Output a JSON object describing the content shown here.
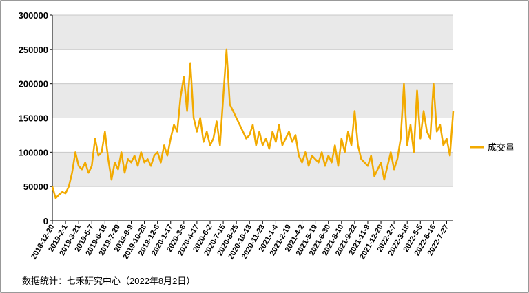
{
  "chart_data": {
    "type": "line",
    "categories": [
      "2018-12-20",
      null,
      null,
      null,
      "2019-2-1",
      null,
      null,
      null,
      "2019-3-21",
      null,
      null,
      null,
      "2019-5-7",
      null,
      null,
      null,
      "2019-6-18",
      null,
      null,
      null,
      "2019-7-29",
      null,
      null,
      null,
      "2019-9-9",
      null,
      null,
      null,
      "2019-10-28",
      null,
      null,
      null,
      "2019-12-6",
      null,
      null,
      null,
      "2020-1-17",
      null,
      null,
      null,
      "2020-3-6",
      null,
      null,
      null,
      "2020-4-17",
      null,
      null,
      null,
      "2020-6-2",
      null,
      null,
      null,
      "2020-7-15",
      null,
      null,
      null,
      "2020-8-25",
      null,
      null,
      null,
      "2020-10-13",
      null,
      null,
      null,
      "2020-11-23",
      null,
      null,
      null,
      "2021-1-4",
      null,
      null,
      null,
      "2021-2-19",
      null,
      null,
      null,
      "2021-4-2",
      null,
      null,
      null,
      "2021-5-19",
      null,
      null,
      null,
      "2021-6-30",
      null,
      null,
      null,
      "2021-8-10",
      null,
      null,
      null,
      "2021-9-22",
      null,
      null,
      null,
      "2021-11-9",
      null,
      null,
      null,
      "2021-12-20",
      null,
      null,
      null,
      "2022-2-7",
      null,
      null,
      null,
      "2022-3-18",
      null,
      null,
      null,
      "2022-5-5",
      null,
      null,
      null,
      "2022-6-16",
      null,
      null,
      null,
      "2022-7-27",
      null,
      null
    ],
    "series": [
      {
        "name": "成交量",
        "color": "#f2aa00",
        "values": [
          50000,
          33000,
          38000,
          42000,
          40000,
          50000,
          70000,
          100000,
          80000,
          75000,
          85000,
          70000,
          80000,
          120000,
          95000,
          100000,
          130000,
          90000,
          60000,
          85000,
          75000,
          100000,
          70000,
          90000,
          85000,
          95000,
          80000,
          100000,
          85000,
          90000,
          80000,
          95000,
          100000,
          85000,
          110000,
          95000,
          120000,
          140000,
          130000,
          180000,
          210000,
          160000,
          230000,
          150000,
          130000,
          150000,
          115000,
          130000,
          110000,
          120000,
          145000,
          110000,
          180000,
          250000,
          170000,
          160000,
          150000,
          140000,
          130000,
          120000,
          125000,
          140000,
          110000,
          130000,
          110000,
          120000,
          105000,
          130000,
          115000,
          140000,
          110000,
          120000,
          130000,
          115000,
          125000,
          95000,
          85000,
          100000,
          80000,
          95000,
          90000,
          85000,
          100000,
          80000,
          95000,
          85000,
          110000,
          80000,
          120000,
          100000,
          130000,
          110000,
          160000,
          110000,
          90000,
          85000,
          80000,
          95000,
          65000,
          75000,
          85000,
          60000,
          80000,
          100000,
          75000,
          90000,
          120000,
          200000,
          110000,
          140000,
          100000,
          190000,
          120000,
          160000,
          130000,
          120000,
          200000,
          130000,
          140000,
          110000,
          120000,
          95000,
          160000
        ]
      }
    ],
    "ylim": [
      0,
      300000
    ],
    "yticks": [
      0,
      50000,
      100000,
      150000,
      200000,
      250000,
      300000
    ],
    "grid": true,
    "legend": "right",
    "source": "数据统计：七禾研究中心（2022年8月2日）"
  }
}
